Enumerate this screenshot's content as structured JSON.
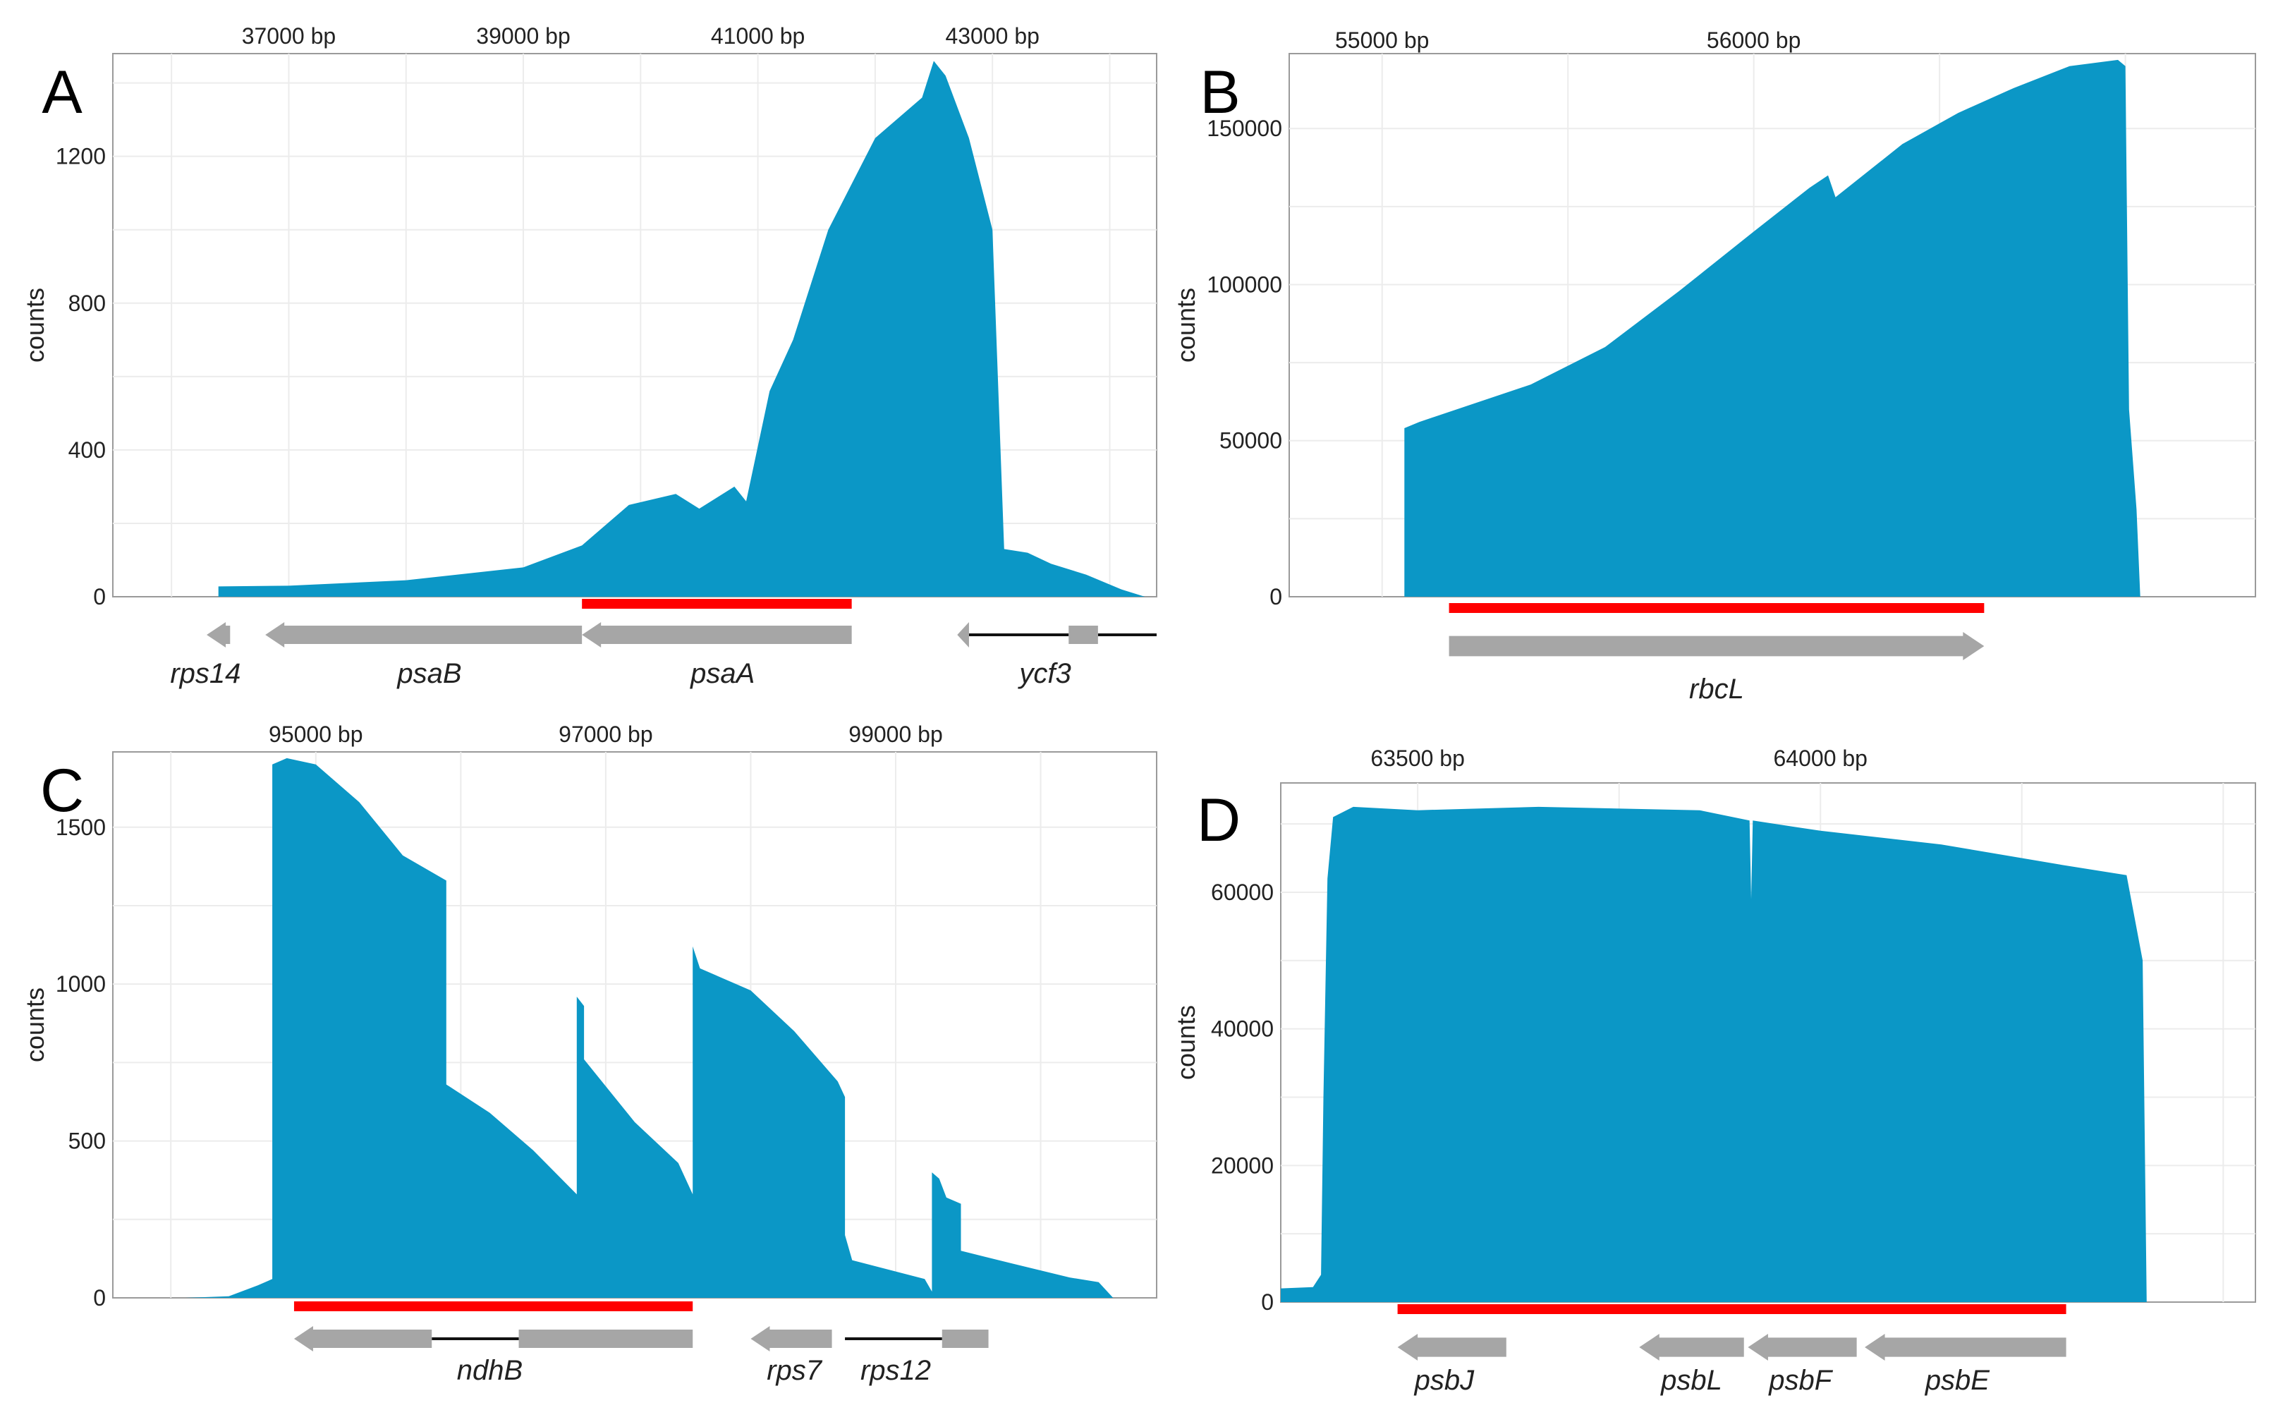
{
  "chart_data": [
    {
      "id": "A",
      "type": "area",
      "letter": "A",
      "ylabel": "counts",
      "xlim": [
        35500,
        44400
      ],
      "ylim": [
        0,
        1480
      ],
      "xticks": [
        {
          "value": 37000,
          "label": "37000 bp"
        },
        {
          "value": 39000,
          "label": "39000 bp"
        },
        {
          "value": 41000,
          "label": "41000 bp"
        },
        {
          "value": 43000,
          "label": "43000 bp"
        }
      ],
      "yticks": [
        {
          "value": 0,
          "label": "0"
        },
        {
          "value": 400,
          "label": "400"
        },
        {
          "value": 800,
          "label": "800"
        },
        {
          "value": 1200,
          "label": "1200"
        }
      ],
      "coverage": [
        [
          36400,
          0
        ],
        [
          36400,
          28
        ],
        [
          37000,
          30
        ],
        [
          38000,
          45
        ],
        [
          39000,
          80
        ],
        [
          39500,
          140
        ],
        [
          39900,
          250
        ],
        [
          40300,
          280
        ],
        [
          40500,
          240
        ],
        [
          40800,
          300
        ],
        [
          40900,
          260
        ],
        [
          41100,
          560
        ],
        [
          41300,
          700
        ],
        [
          41600,
          1000
        ],
        [
          42000,
          1250
        ],
        [
          42400,
          1360
        ],
        [
          42500,
          1460
        ],
        [
          42600,
          1420
        ],
        [
          42800,
          1250
        ],
        [
          43000,
          1000
        ],
        [
          43100,
          130
        ],
        [
          43300,
          120
        ],
        [
          43500,
          90
        ],
        [
          43800,
          60
        ],
        [
          44100,
          20
        ],
        [
          44300,
          0
        ]
      ],
      "red_region": [
        39500,
        41800
      ],
      "genes": [
        {
          "name": "rps14",
          "segments": [
            [
              36300,
              36500
            ]
          ],
          "direction": "left",
          "label_pos": 36290
        },
        {
          "name": "psaB",
          "segments": [
            [
              36800,
              39500
            ]
          ],
          "direction": "left",
          "label_pos": 38200
        },
        {
          "name": "psaA",
          "segments": [
            [
              39500,
              41800
            ]
          ],
          "direction": "left",
          "label_pos": 40700
        },
        {
          "name": "ycf3",
          "segments": [
            [
              42700,
              42800
            ],
            [
              43650,
              43900
            ]
          ],
          "introns": [
            [
              42800,
              43650
            ],
            [
              43900,
              44400
            ]
          ],
          "direction": "left",
          "label_pos": 43450
        }
      ]
    },
    {
      "id": "B",
      "type": "area",
      "letter": "B",
      "ylabel": "counts",
      "xlim": [
        54750,
        57350
      ],
      "ylim": [
        0,
        174000
      ],
      "xticks": [
        {
          "value": 55000,
          "label": "55000 bp"
        },
        {
          "value": 56000,
          "label": "56000 bp"
        }
      ],
      "yticks": [
        {
          "value": 0,
          "label": "0"
        },
        {
          "value": 50000,
          "label": "50000"
        },
        {
          "value": 100000,
          "label": "100000"
        },
        {
          "value": 150000,
          "label": "150000"
        }
      ],
      "coverage": [
        [
          55060,
          0
        ],
        [
          55060,
          54000
        ],
        [
          55100,
          56000
        ],
        [
          55250,
          62000
        ],
        [
          55400,
          68000
        ],
        [
          55600,
          80000
        ],
        [
          55800,
          98000
        ],
        [
          56000,
          117000
        ],
        [
          56150,
          131000
        ],
        [
          56200,
          135000
        ],
        [
          56220,
          128000
        ],
        [
          56400,
          145000
        ],
        [
          56550,
          155000
        ],
        [
          56700,
          163000
        ],
        [
          56850,
          170000
        ],
        [
          56980,
          172000
        ],
        [
          57000,
          170000
        ],
        [
          57010,
          60000
        ],
        [
          57030,
          28000
        ],
        [
          57040,
          0
        ]
      ],
      "red_region": [
        55180,
        56620
      ],
      "genes": [
        {
          "name": "rbcL",
          "segments": [
            [
              55180,
              56620
            ]
          ],
          "direction": "right",
          "label_pos": 55900
        }
      ]
    },
    {
      "id": "C",
      "type": "area",
      "letter": "C",
      "ylabel": "counts",
      "xlim": [
        93600,
        100800
      ],
      "ylim": [
        0,
        1740
      ],
      "xticks": [
        {
          "value": 95000,
          "label": "95000 bp"
        },
        {
          "value": 97000,
          "label": "97000 bp"
        },
        {
          "value": 99000,
          "label": "99000 bp"
        }
      ],
      "yticks": [
        {
          "value": 0,
          "label": "0"
        },
        {
          "value": 500,
          "label": "500"
        },
        {
          "value": 1000,
          "label": "1000"
        },
        {
          "value": 1500,
          "label": "1500"
        }
      ],
      "coverage": [
        [
          94100,
          0
        ],
        [
          94400,
          5
        ],
        [
          94600,
          40
        ],
        [
          94700,
          60
        ],
        [
          94700,
          1700
        ],
        [
          94800,
          1720
        ],
        [
          95000,
          1700
        ],
        [
          95300,
          1580
        ],
        [
          95600,
          1410
        ],
        [
          95900,
          1330
        ],
        [
          95900,
          680
        ],
        [
          96200,
          590
        ],
        [
          96500,
          470
        ],
        [
          96800,
          330
        ],
        [
          96800,
          960
        ],
        [
          96850,
          930
        ],
        [
          96850,
          760
        ],
        [
          97200,
          560
        ],
        [
          97500,
          430
        ],
        [
          97600,
          330
        ],
        [
          97600,
          1120
        ],
        [
          97650,
          1050
        ],
        [
          98000,
          980
        ],
        [
          98300,
          850
        ],
        [
          98600,
          690
        ],
        [
          98650,
          640
        ],
        [
          98650,
          200
        ],
        [
          98700,
          120
        ],
        [
          99200,
          60
        ],
        [
          99250,
          20
        ],
        [
          99250,
          400
        ],
        [
          99300,
          380
        ],
        [
          99350,
          320
        ],
        [
          99450,
          300
        ],
        [
          99450,
          150
        ],
        [
          99800,
          110
        ],
        [
          100200,
          65
        ],
        [
          100400,
          50
        ],
        [
          100500,
          0
        ]
      ],
      "red_region": [
        94850,
        97600
      ],
      "genes": [
        {
          "name": "ndhB",
          "segments": [
            [
              94850,
              95800
            ],
            [
              96400,
              97600
            ]
          ],
          "introns": [
            [
              95800,
              96400
            ]
          ],
          "direction": "left",
          "label_pos": 96200
        },
        {
          "name": "rps7",
          "segments": [
            [
              98000,
              98560
            ]
          ],
          "direction": "left",
          "label_pos": 98300
        },
        {
          "name": "rps12",
          "segments": [
            [
              99320,
              99640
            ]
          ],
          "introns": [
            [
              98650,
              99320
            ]
          ],
          "direction": "none",
          "label_pos": 99000
        }
      ]
    },
    {
      "id": "D",
      "type": "area",
      "letter": "D",
      "ylabel": "counts",
      "xlim": [
        63330,
        64540
      ],
      "ylim": [
        0,
        76000
      ],
      "xticks": [
        {
          "value": 63500,
          "label": "63500 bp"
        },
        {
          "value": 64000,
          "label": "64000 bp"
        }
      ],
      "yticks": [
        {
          "value": 0,
          "label": "0"
        },
        {
          "value": 20000,
          "label": "20000"
        },
        {
          "value": 40000,
          "label": "40000"
        },
        {
          "value": 60000,
          "label": "60000"
        }
      ],
      "coverage": [
        [
          63330,
          2000
        ],
        [
          63370,
          2200
        ],
        [
          63380,
          4000
        ],
        [
          63383,
          30000
        ],
        [
          63388,
          62000
        ],
        [
          63395,
          71000
        ],
        [
          63420,
          72500
        ],
        [
          63500,
          72000
        ],
        [
          63650,
          72500
        ],
        [
          63850,
          72000
        ],
        [
          63912,
          70500
        ],
        [
          63914,
          59000
        ],
        [
          63916,
          70500
        ],
        [
          64000,
          69000
        ],
        [
          64150,
          67000
        ],
        [
          64300,
          64000
        ],
        [
          64380,
          62500
        ],
        [
          64400,
          50000
        ],
        [
          64405,
          0
        ]
      ],
      "red_region": [
        63475,
        64305
      ],
      "genes": [
        {
          "name": "psbJ",
          "segments": [
            [
              63475,
              63610
            ]
          ],
          "direction": "left",
          "label_pos": 63533
        },
        {
          "name": "psbL",
          "segments": [
            [
              63775,
              63905
            ]
          ],
          "direction": "left",
          "label_pos": 63840
        },
        {
          "name": "psbF",
          "segments": [
            [
              63910,
              64045
            ]
          ],
          "direction": "left",
          "label_pos": 63975
        },
        {
          "name": "psbE",
          "segments": [
            [
              64055,
              64305
            ]
          ],
          "direction": "left",
          "label_pos": 64170
        }
      ]
    }
  ]
}
